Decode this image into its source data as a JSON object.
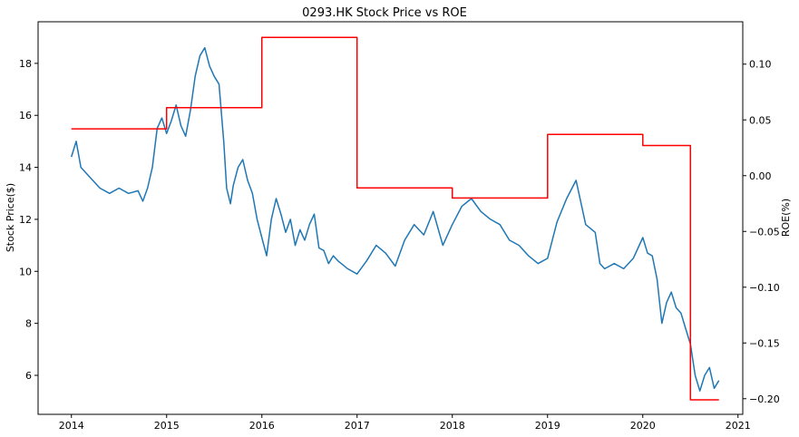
{
  "chart_data": {
    "type": "line",
    "title": "0293.HK Stock Price vs ROE",
    "ylabel": "Stock Price($)",
    "y2label": "ROE(%)",
    "xlim": [
      2013.65,
      2021.05
    ],
    "ylim": [
      4.5,
      19.6
    ],
    "y2lim": [
      -0.214,
      0.138
    ],
    "x_ticks": [
      2014,
      2015,
      2016,
      2017,
      2018,
      2019,
      2020,
      2021
    ],
    "y_ticks": [
      6,
      8,
      10,
      12,
      14,
      16,
      18
    ],
    "y2_ticks": [
      -0.2,
      -0.15,
      -0.1,
      -0.05,
      0.0,
      0.05,
      0.1
    ],
    "y2_tick_labels": [
      "−0.20",
      "−0.15",
      "−0.10",
      "−0.05",
      "0.00",
      "0.05",
      "0.10"
    ],
    "grid": false,
    "series": [
      {
        "axis": "left",
        "color": "#1f77b4",
        "x": [
          2014.0,
          2014.05,
          2014.1,
          2014.2,
          2014.3,
          2014.4,
          2014.5,
          2014.6,
          2014.7,
          2014.75,
          2014.8,
          2014.85,
          2014.9,
          2014.95,
          2015.0,
          2015.05,
          2015.1,
          2015.15,
          2015.2,
          2015.25,
          2015.3,
          2015.35,
          2015.4,
          2015.45,
          2015.5,
          2015.55,
          2015.6,
          2015.63,
          2015.67,
          2015.7,
          2015.75,
          2015.8,
          2015.85,
          2015.9,
          2015.95,
          2016.0,
          2016.05,
          2016.1,
          2016.15,
          2016.2,
          2016.25,
          2016.3,
          2016.35,
          2016.4,
          2016.45,
          2016.5,
          2016.55,
          2016.6,
          2016.65,
          2016.7,
          2016.75,
          2016.8,
          2016.9,
          2017.0,
          2017.1,
          2017.2,
          2017.3,
          2017.4,
          2017.5,
          2017.6,
          2017.7,
          2017.8,
          2017.9,
          2018.0,
          2018.1,
          2018.2,
          2018.3,
          2018.4,
          2018.5,
          2018.6,
          2018.7,
          2018.8,
          2018.9,
          2019.0,
          2019.1,
          2019.2,
          2019.3,
          2019.4,
          2019.5,
          2019.55,
          2019.6,
          2019.7,
          2019.8,
          2019.9,
          2020.0,
          2020.05,
          2020.1,
          2020.15,
          2020.2,
          2020.25,
          2020.3,
          2020.35,
          2020.4,
          2020.45,
          2020.5,
          2020.55,
          2020.6,
          2020.65,
          2020.7,
          2020.75,
          2020.8
        ],
        "values": [
          14.4,
          15.0,
          14.0,
          13.6,
          13.2,
          13.0,
          13.2,
          13.0,
          13.1,
          12.7,
          13.2,
          14.0,
          15.5,
          15.9,
          15.3,
          15.8,
          16.4,
          15.6,
          15.2,
          16.2,
          17.5,
          18.3,
          18.6,
          17.9,
          17.5,
          17.2,
          15.0,
          13.2,
          12.6,
          13.3,
          14.0,
          14.3,
          13.5,
          13.0,
          12.0,
          11.3,
          10.6,
          12.0,
          12.8,
          12.2,
          11.5,
          12.0,
          11.0,
          11.6,
          11.2,
          11.8,
          12.2,
          10.9,
          10.8,
          10.3,
          10.6,
          10.4,
          10.1,
          9.9,
          10.4,
          11.0,
          10.7,
          10.2,
          11.2,
          11.8,
          11.4,
          12.3,
          11.0,
          11.8,
          12.5,
          12.8,
          12.3,
          12.0,
          11.8,
          11.2,
          11.0,
          10.6,
          10.3,
          10.5,
          11.9,
          12.8,
          13.5,
          11.8,
          11.5,
          10.3,
          10.1,
          10.3,
          10.1,
          10.5,
          11.3,
          10.7,
          10.6,
          9.7,
          8.0,
          8.8,
          9.2,
          8.6,
          8.4,
          7.8,
          7.2,
          6.0,
          5.4,
          6.0,
          6.3,
          5.5,
          5.8
        ]
      },
      {
        "axis": "right",
        "color": "#ff0000",
        "step": true,
        "x": [
          2014.0,
          2015.0,
          2015.0,
          2016.0,
          2016.0,
          2017.0,
          2017.0,
          2018.0,
          2018.0,
          2019.0,
          2019.0,
          2020.0,
          2020.0,
          2020.5,
          2020.5,
          2020.8
        ],
        "values": [
          0.042,
          0.042,
          0.061,
          0.061,
          0.124,
          0.124,
          -0.011,
          -0.011,
          -0.02,
          -0.02,
          0.037,
          0.037,
          0.027,
          0.027,
          -0.201,
          -0.201
        ]
      }
    ]
  }
}
